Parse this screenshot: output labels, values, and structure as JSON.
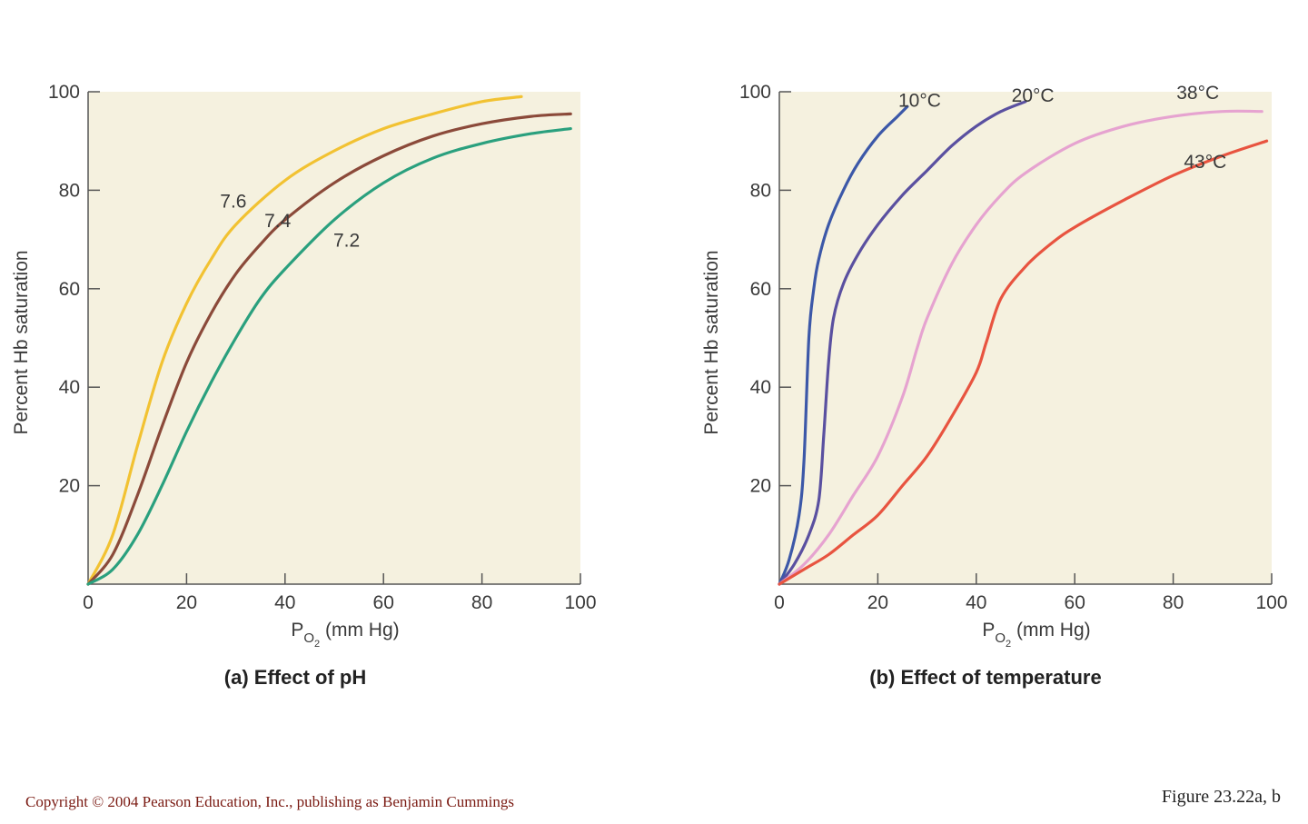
{
  "chart_data": [
    {
      "type": "line",
      "caption": "(a) Effect of pH",
      "xlabel_main": "P",
      "xlabel_sub": "O",
      "xlabel_subsub": "2",
      "xlabel_rest": " (mm Hg)",
      "ylabel": "Percent Hb saturation",
      "xlim": [
        0,
        100
      ],
      "ylim": [
        0,
        100
      ],
      "x_ticks": [
        "0",
        "20",
        "40",
        "60",
        "80",
        "100"
      ],
      "y_ticks": [
        "20",
        "40",
        "60",
        "80",
        "100"
      ],
      "series": [
        {
          "name": "7.6",
          "color": "#f2c232",
          "x": [
            0,
            5,
            10,
            15,
            20,
            25,
            30,
            40,
            50,
            60,
            70,
            80,
            88
          ],
          "y": [
            0,
            10,
            28,
            45,
            57,
            66,
            73,
            82,
            88,
            92.5,
            95.5,
            98,
            99
          ]
        },
        {
          "name": "7.4",
          "color": "#8b4a3a",
          "x": [
            0,
            5,
            10,
            15,
            20,
            25,
            30,
            35,
            40,
            50,
            60,
            70,
            80,
            90,
            98
          ],
          "y": [
            0,
            6,
            18,
            32,
            45,
            55,
            63,
            69,
            74,
            81.5,
            87,
            91,
            93.5,
            95,
            95.5
          ]
        },
        {
          "name": "7.2",
          "color": "#2aa07e",
          "x": [
            0,
            5,
            10,
            15,
            20,
            25,
            30,
            35,
            40,
            50,
            60,
            70,
            80,
            90,
            98
          ],
          "y": [
            0,
            3,
            10,
            20,
            31,
            41,
            50,
            58,
            64,
            74,
            81.5,
            86.5,
            89.5,
            91.5,
            92.5
          ]
        }
      ],
      "labels": [
        {
          "text": "7.6",
          "x": 29.5,
          "y": 76.5
        },
        {
          "text": "7.4",
          "x": 38.5,
          "y": 72.5
        },
        {
          "text": "7.2",
          "x": 52.5,
          "y": 68.5
        }
      ]
    },
    {
      "type": "line",
      "caption": "(b) Effect of temperature",
      "xlabel_main": "P",
      "xlabel_sub": "O",
      "xlabel_subsub": "2",
      "xlabel_rest": " (mm Hg)",
      "ylabel": "Percent Hb saturation",
      "xlim": [
        0,
        100
      ],
      "ylim": [
        0,
        100
      ],
      "x_ticks": [
        "0",
        "20",
        "40",
        "60",
        "80",
        "100"
      ],
      "y_ticks": [
        "20",
        "40",
        "60",
        "80",
        "100"
      ],
      "series": [
        {
          "name": "10°C",
          "color": "#3c58a8",
          "x": [
            0,
            2,
            4,
            5,
            6,
            7,
            8,
            10,
            13,
            16,
            20,
            24,
            26
          ],
          "y": [
            0,
            5,
            14,
            25,
            50,
            60,
            66,
            73,
            80,
            85.5,
            91,
            95,
            97
          ]
        },
        {
          "name": "20°C",
          "color": "#5a50a0",
          "x": [
            0,
            3,
            6,
            8,
            9,
            10,
            11,
            13,
            16,
            20,
            25,
            30,
            35,
            40,
            45,
            50
          ],
          "y": [
            0,
            4,
            10,
            17,
            30,
            45,
            54,
            61,
            67,
            73,
            79,
            84,
            89,
            93,
            96,
            98
          ]
        },
        {
          "name": "38°C",
          "color": "#e6a3d0",
          "x": [
            0,
            5,
            10,
            15,
            20,
            25,
            28,
            30,
            35,
            40,
            45,
            50,
            60,
            70,
            80,
            90,
            98
          ],
          "y": [
            0,
            4,
            10,
            18,
            26,
            38,
            48,
            54,
            65,
            73,
            79,
            83.5,
            89.5,
            93,
            95,
            96,
            96
          ]
        },
        {
          "name": "43°C",
          "color": "#e85440",
          "x": [
            0,
            5,
            10,
            15,
            20,
            25,
            30,
            35,
            40,
            42,
            45,
            50,
            55,
            60,
            70,
            80,
            90,
            99
          ],
          "y": [
            0,
            3,
            6,
            10,
            14,
            20,
            26,
            34,
            43,
            49,
            58,
            64.5,
            69,
            72.5,
            78,
            83,
            87,
            90
          ]
        }
      ],
      "labels": [
        {
          "text": "10°C",
          "x": 28.5,
          "y": 97
        },
        {
          "text": "20°C",
          "x": 51.5,
          "y": 98
        },
        {
          "text": "38°C",
          "x": 85,
          "y": 98.5
        },
        {
          "text": "43°C",
          "x": 86.5,
          "y": 84.5
        }
      ]
    }
  ],
  "colors": {
    "plot_bg": "#f5f1df",
    "axis": "#555555"
  },
  "footer": {
    "copyright": "Copyright © 2004 Pearson Education, Inc., publishing as Benjamin Cummings",
    "figure_label": "Figure 23.22a, b"
  }
}
